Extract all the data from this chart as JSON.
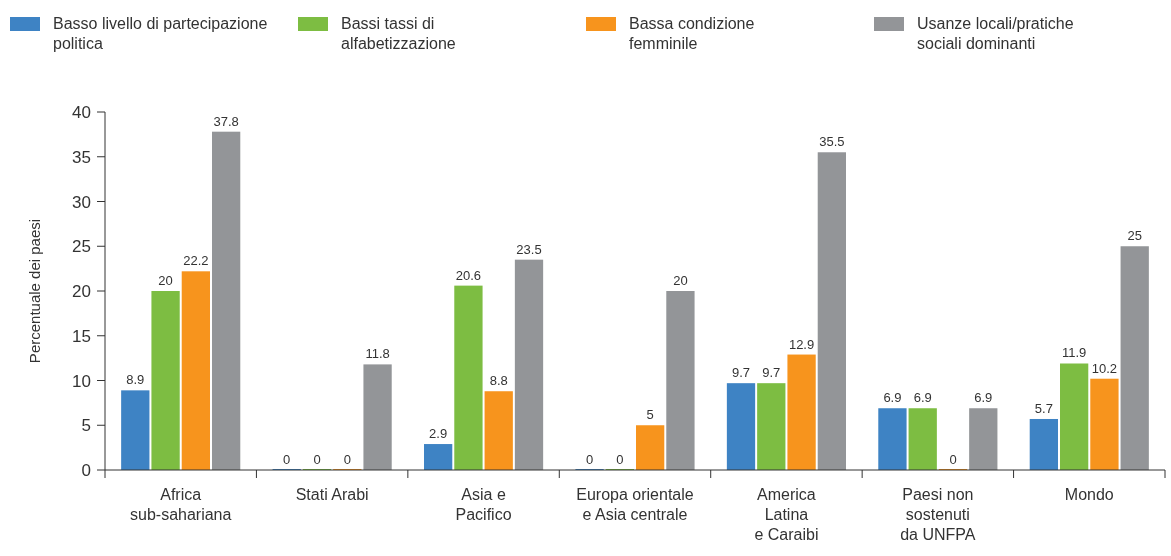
{
  "chart_data": {
    "type": "bar",
    "ylabel": "Percentuale dei paesi",
    "categories": [
      "Africa\nsub-sahariana",
      "Stati Arabi",
      "Asia e\nPacifico",
      "Europa orientale\ne Asia centrale",
      "America\nLatina\ne Caraibi",
      "Paesi non\nsostenuti\nda UNFPA",
      "Mondo"
    ],
    "series": [
      {
        "name": "Basso livello di partecipazione\npolitica",
        "color": "#3e83c4",
        "values": [
          8.9,
          0,
          2.9,
          0,
          9.7,
          6.9,
          5.7
        ]
      },
      {
        "name": "Bassi tassi di\nalfabetizzazione",
        "color": "#7dbd42",
        "values": [
          20,
          0,
          20.6,
          0,
          9.7,
          6.9,
          11.9
        ]
      },
      {
        "name": "Bassa condizione\nfemminile",
        "color": "#f7941d",
        "values": [
          22.2,
          0,
          8.8,
          5,
          12.9,
          0,
          10.2
        ]
      },
      {
        "name": "Usanze locali/pratiche\nsociali dominanti",
        "color": "#939598",
        "values": [
          37.8,
          11.8,
          23.5,
          20,
          35.5,
          6.9,
          25
        ]
      }
    ],
    "ylim": [
      0,
      40
    ],
    "yticks": [
      0,
      5,
      10,
      15,
      20,
      25,
      30,
      35,
      40
    ],
    "data_labels": true,
    "legend": "top",
    "grid": false
  }
}
